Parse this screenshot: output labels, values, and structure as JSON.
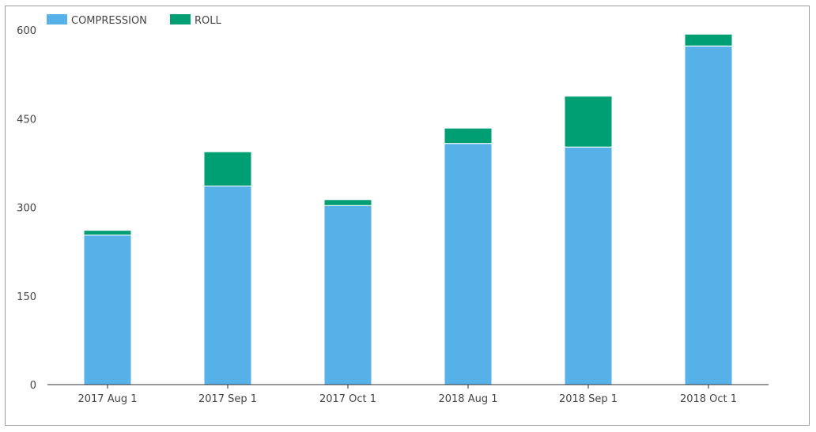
{
  "chart_data": {
    "type": "bar",
    "stacked": true,
    "categories": [
      "2017 Aug 1",
      "2017 Sep 1",
      "2017 Oct 1",
      "2018 Aug 1",
      "2018 Sep 1",
      "2018 Oct 1"
    ],
    "series": [
      {
        "name": "COMPRESSION",
        "color": "#56b1e8",
        "values": [
          253,
          336,
          303,
          408,
          402,
          573
        ]
      },
      {
        "name": "ROLL",
        "color": "#009e73",
        "values": [
          8,
          58,
          10,
          26,
          86,
          20
        ]
      }
    ],
    "yticks": [
      0,
      150,
      300,
      450,
      600
    ],
    "ylim": [
      0,
      600
    ],
    "legend_position": "top-left",
    "grid": false
  }
}
